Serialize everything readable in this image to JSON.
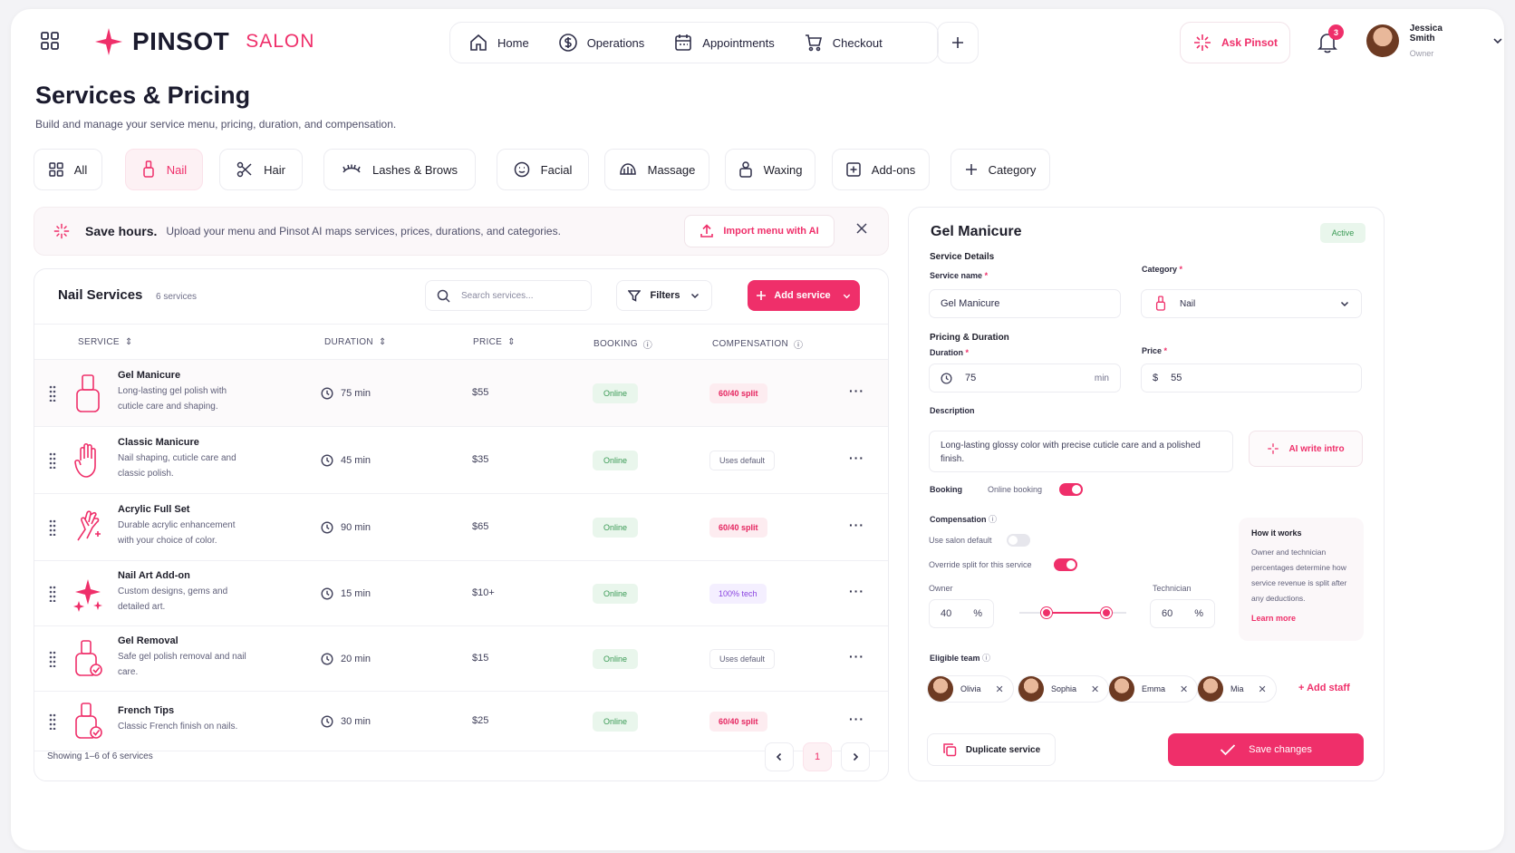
{
  "brand": {
    "name": "PINSOT",
    "sub": "SALON",
    "accent": "#ef2f6a"
  },
  "nav": {
    "items": [
      {
        "label": "Home",
        "icon": "home-icon"
      },
      {
        "label": "Operations",
        "icon": "dollar-icon"
      },
      {
        "label": "Appointments",
        "icon": "calendar-icon"
      },
      {
        "label": "Checkout",
        "icon": "cart-icon"
      }
    ]
  },
  "ask": {
    "label": "Ask Pinsot"
  },
  "notifications": {
    "count": "3"
  },
  "user": {
    "name": "Jessica Smith",
    "role": "Owner"
  },
  "page": {
    "title": "Services & Pricing",
    "subtitle": "Build and manage your service menu, pricing, duration, and compensation."
  },
  "categories": [
    {
      "label": "All",
      "icon": "grid-icon"
    },
    {
      "label": "Nail",
      "icon": "nail-polish-icon",
      "active": true
    },
    {
      "label": "Hair",
      "icon": "scissors-icon"
    },
    {
      "label": "Lashes & Brows",
      "icon": "lashes-icon"
    },
    {
      "label": "Facial",
      "icon": "face-icon"
    },
    {
      "label": "Massage",
      "icon": "massage-icon"
    },
    {
      "label": "Waxing",
      "icon": "wax-icon"
    },
    {
      "label": "Add-ons",
      "icon": "plus-square-icon"
    },
    {
      "label": "Category",
      "icon": "plus-icon"
    }
  ],
  "banner": {
    "title": "Save hours.",
    "text": "Upload your menu and Pinsot AI maps services, prices, durations, and categories.",
    "button": "Import menu with AI"
  },
  "table": {
    "title": "Nail Services",
    "count": "6 services",
    "search_placeholder": "Search services...",
    "filters": "Filters",
    "add": "Add service",
    "headers": {
      "service": "SERVICE",
      "duration": "DURATION",
      "price": "PRICE",
      "booking": "BOOKING",
      "compensation": "COMPENSATION"
    },
    "rows": [
      {
        "name": "Gel Manicure",
        "desc": "Long-lasting gel polish with cuticle care and shaping.",
        "duration": "75 min",
        "price": "$55",
        "booking": "Online",
        "comp": "60/40 split",
        "comp_type": "split",
        "icon": "nail-polish-icon"
      },
      {
        "name": "Classic Manicure",
        "desc": "Nail shaping, cuticle care and classic polish.",
        "duration": "45 min",
        "price": "$35",
        "booking": "Online",
        "comp": "Uses default",
        "comp_type": "def",
        "icon": "hand-icon"
      },
      {
        "name": "Acrylic Full Set",
        "desc": "Durable acrylic enhancement with your choice of color.",
        "duration": "90 min",
        "price": "$65",
        "booking": "Online",
        "comp": "60/40 split",
        "comp_type": "split",
        "icon": "sparkle-hand-icon"
      },
      {
        "name": "Nail Art Add-on",
        "desc": "Custom designs, gems and detailed art.",
        "duration": "15 min",
        "price": "$10+",
        "booking": "Online",
        "comp": "100% tech",
        "comp_type": "tech",
        "icon": "sparkles-icon"
      },
      {
        "name": "Gel Removal",
        "desc": "Safe gel polish removal and nail care.",
        "duration": "20 min",
        "price": "$15",
        "booking": "Online",
        "comp": "Uses default",
        "comp_type": "def",
        "icon": "polish-check-icon"
      },
      {
        "name": "French Tips",
        "desc": "Classic French finish on nails.",
        "duration": "30 min",
        "price": "$25",
        "booking": "Online",
        "comp": "60/40 split",
        "comp_type": "split",
        "icon": "polish-check-icon"
      }
    ],
    "showing": "Showing 1–6 of 6 services",
    "page": "1"
  },
  "detail": {
    "title": "Gel Manicure",
    "status": "Active",
    "section_details": "Service Details",
    "name_label": "Service name",
    "name_value": "Gel Manicure",
    "category_label": "Category",
    "category_value": "Nail",
    "section_pricing": "Pricing & Duration",
    "duration_label": "Duration",
    "duration_value": "75",
    "duration_unit": "min",
    "price_label": "Price",
    "price_currency": "$",
    "price_value": "55",
    "description_label": "Description",
    "description_value": "Long-lasting glossy color with precise cuticle care and a polished finish.",
    "ai_write": "AI write intro",
    "booking_label": "Booking",
    "online_booking": "Online booking",
    "online_booking_on": true,
    "compensation_label": "Compensation",
    "use_default": "Use salon default",
    "use_default_on": false,
    "override": "Override split for this service",
    "override_on": true,
    "owner_label": "Owner",
    "owner_value": "40",
    "tech_label": "Technician",
    "tech_value": "60",
    "pct": "%",
    "how_title": "How it works",
    "how_text": "Owner and technician percentages determine how service revenue is split after any deductions.",
    "learn_more": "Learn more",
    "team_label": "Eligible team",
    "team": [
      "Olivia",
      "Sophia",
      "Emma",
      "Mia"
    ],
    "add_staff": "Add staff",
    "duplicate": "Duplicate service",
    "save": "Save changes"
  }
}
